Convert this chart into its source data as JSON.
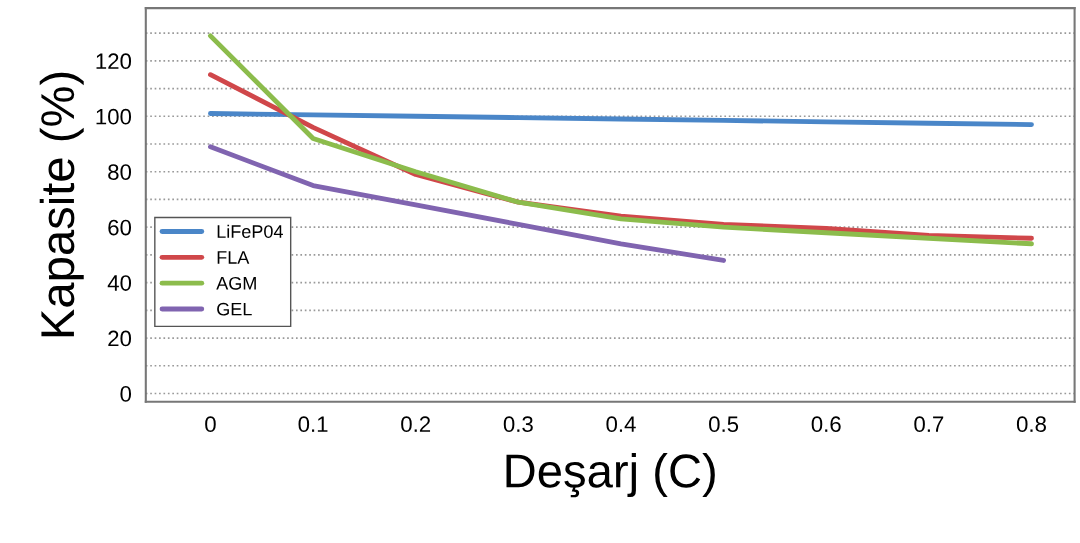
{
  "chart_data": {
    "type": "line",
    "xlabel": "Deşarj (C)",
    "ylabel": "Kapasite (%)",
    "x": [
      0,
      0.1,
      0.2,
      0.3,
      0.4,
      0.5,
      0.6,
      0.7,
      0.8
    ],
    "series": [
      {
        "name": "LiFeP04",
        "color": "#4a86c8",
        "values": [
          101,
          100.5,
          100,
          99.5,
          99,
          98.5,
          98,
          97.5,
          97
        ]
      },
      {
        "name": "FLA",
        "color": "#d0474a",
        "values": [
          115,
          96,
          79,
          69,
          64,
          61,
          59.5,
          57,
          56
        ]
      },
      {
        "name": "AGM",
        "color": "#8cbc4c",
        "values": [
          129,
          92,
          80,
          69,
          63,
          60,
          58,
          56,
          54
        ]
      },
      {
        "name": "GEL",
        "color": "#8064b0",
        "values": [
          89,
          75,
          68,
          61,
          54,
          48,
          null,
          null,
          null
        ]
      }
    ],
    "xlim": [
      -0.063,
      0.842
    ],
    "ylim": [
      -3,
      139
    ],
    "xticks": [
      0,
      0.1,
      0.2,
      0.3,
      0.4,
      0.5,
      0.6,
      0.7,
      0.8
    ],
    "yticks": [
      0,
      {
        "value": 10,
        "label": null
      },
      20,
      {
        "value": 30,
        "label": null
      },
      40,
      {
        "value": 50,
        "label": null
      },
      60,
      {
        "value": 70,
        "label": null
      },
      80,
      {
        "value": 90,
        "label": null
      },
      100,
      {
        "value": 110,
        "label": null
      },
      120,
      {
        "value": 130,
        "label": null
      }
    ],
    "grid": "y",
    "legend": "left",
    "marker": "none",
    "line_style": "solid"
  }
}
